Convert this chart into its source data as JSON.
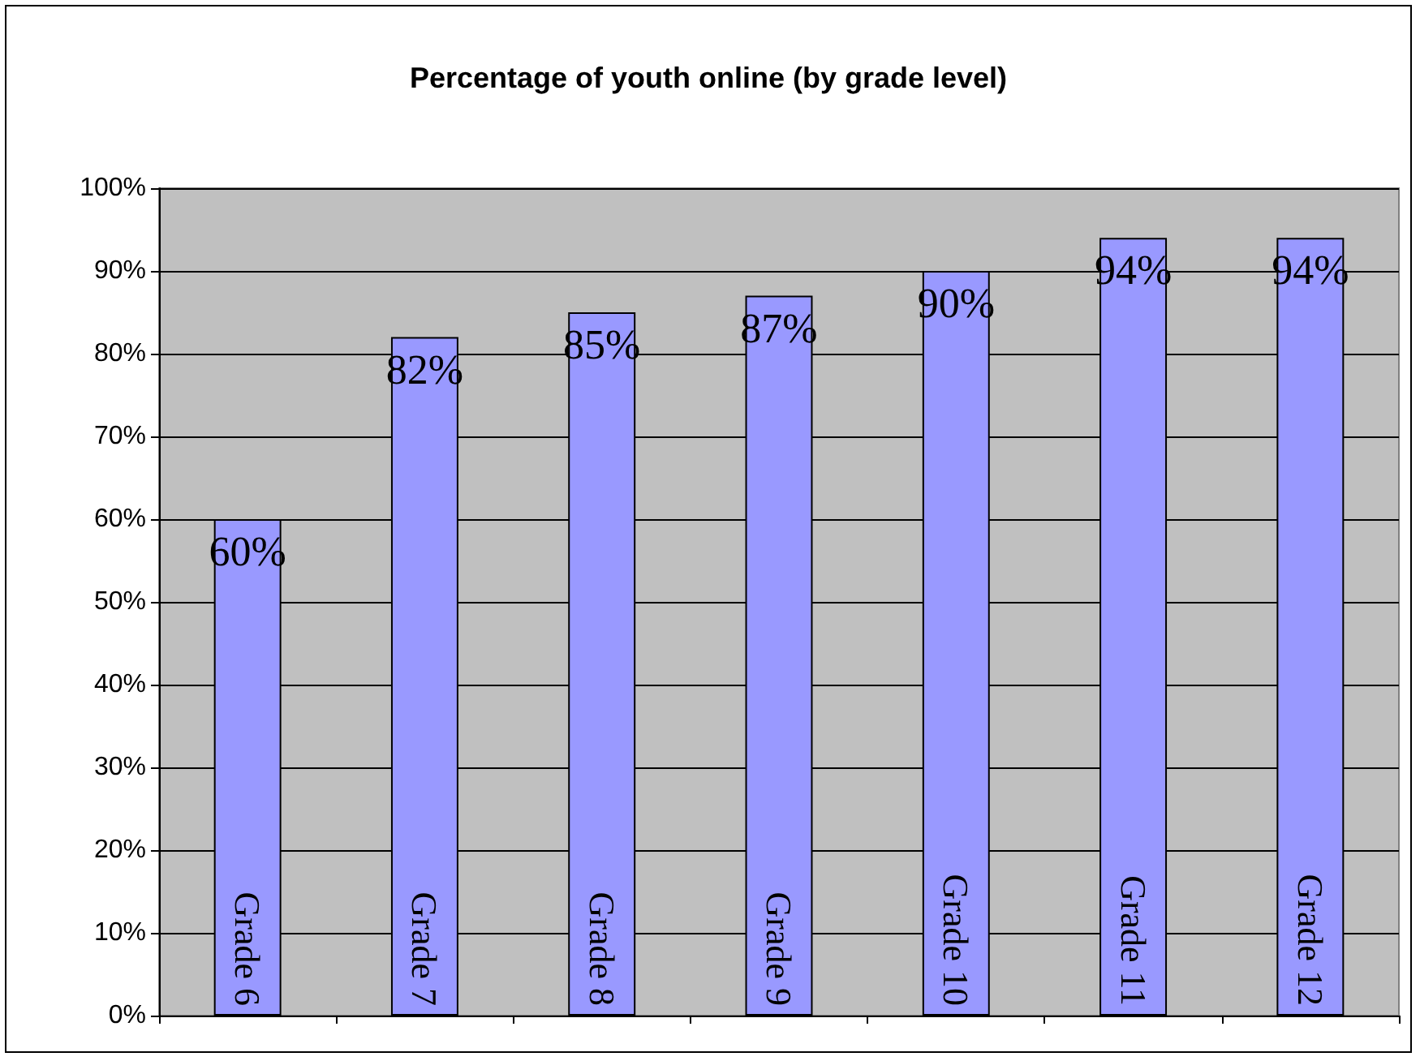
{
  "chart_data": {
    "type": "bar",
    "title": "Percentage of youth online (by grade level)",
    "categories": [
      "Grade 6",
      "Grade 7",
      "Grade 8",
      "Grade 9",
      "Grade 10",
      "Grade 11",
      "Grade 12"
    ],
    "values": [
      60,
      82,
      85,
      87,
      90,
      94,
      94
    ],
    "value_labels": [
      "60%",
      "82%",
      "85%",
      "87%",
      "90%",
      "94%",
      "94%"
    ],
    "color": "#9999ff",
    "ylim": [
      0,
      100
    ],
    "yticks": [
      {
        "value": 0,
        "label": "0%"
      },
      {
        "value": 10,
        "label": "10%"
      },
      {
        "value": 20,
        "label": "20%"
      },
      {
        "value": 30,
        "label": "30%"
      },
      {
        "value": 40,
        "label": "40%"
      },
      {
        "value": 50,
        "label": "50%"
      },
      {
        "value": 60,
        "label": "60%"
      },
      {
        "value": 70,
        "label": "70%"
      },
      {
        "value": 80,
        "label": "80%"
      },
      {
        "value": 90,
        "label": "90%"
      },
      {
        "value": 100,
        "label": "100%"
      }
    ],
    "grid": "y"
  }
}
